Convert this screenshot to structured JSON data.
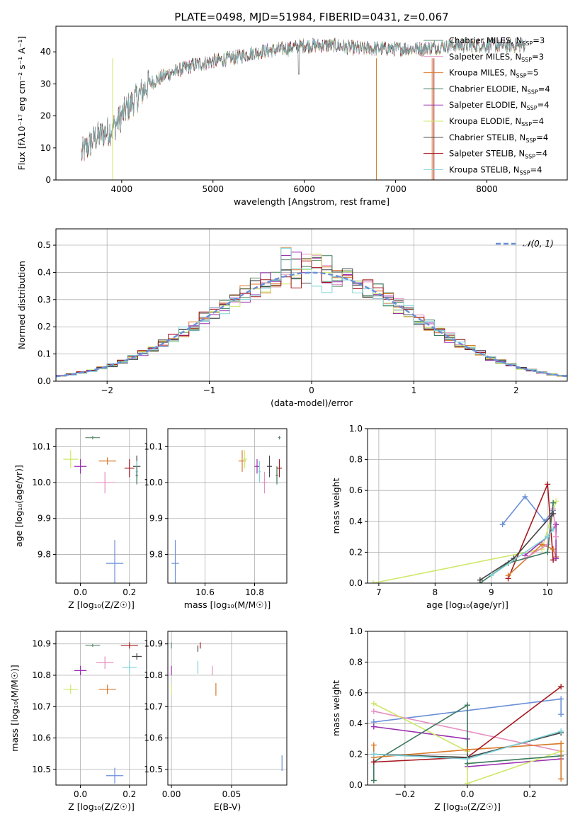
{
  "title": "PLATE=0498, MJD=51984, FIBERID=0431, z=0.067",
  "colors": {
    "cm": "#5b8b6b",
    "sm": "#e58fc0",
    "km": "#d97a2b",
    "ce": "#3d7a5e",
    "se": "#9b30b0",
    "ke": "#cde86a",
    "cs": "#444444",
    "ss": "#a5191f",
    "ks": "#7fd3d8",
    "fit": "#6a8fd8"
  },
  "chart_data": [
    {
      "id": "spectrum",
      "type": "line",
      "xlabel": "wavelength [Angstrom, rest frame]",
      "ylabel": "Flux [fλ10⁻¹⁷ erg cm⁻² s⁻¹ A⁻¹]",
      "xlim": [
        3280,
        8880
      ],
      "ylim": [
        0,
        48
      ],
      "xticks": [
        4000,
        5000,
        6000,
        7000,
        8000
      ],
      "yticks": [
        0,
        10,
        20,
        30,
        40
      ],
      "legend_position": "top-right",
      "continuum": [
        [
          3560,
          8
        ],
        [
          3700,
          13
        ],
        [
          3900,
          16
        ],
        [
          4050,
          22
        ],
        [
          4300,
          30
        ],
        [
          4500,
          33
        ],
        [
          4800,
          36
        ],
        [
          5000,
          37
        ],
        [
          5200,
          38
        ],
        [
          5500,
          40
        ],
        [
          5800,
          41
        ],
        [
          6000,
          42
        ],
        [
          6300,
          42
        ],
        [
          6600,
          41
        ],
        [
          7000,
          41
        ],
        [
          7300,
          41
        ],
        [
          7600,
          42
        ],
        [
          7900,
          42
        ],
        [
          8200,
          42
        ],
        [
          8400,
          42
        ]
      ],
      "series": [
        {
          "name": "Chabrier MILES, N",
          "sub": "SSP",
          "suffix": "=3",
          "color": "cm"
        },
        {
          "name": "Salpeter MILES, N",
          "sub": "SSP",
          "suffix": "=3",
          "color": "sm"
        },
        {
          "name": "Kroupa MILES, N",
          "sub": "SSP",
          "suffix": "=5",
          "color": "km"
        },
        {
          "name": "Chabrier ELODIE, N",
          "sub": "SSP",
          "suffix": "=4",
          "color": "ce"
        },
        {
          "name": "Salpeter ELODIE, N",
          "sub": "SSP",
          "suffix": "=4",
          "color": "se"
        },
        {
          "name": "Kroupa ELODIE, N",
          "sub": "SSP",
          "suffix": "=4",
          "color": "ke"
        },
        {
          "name": "Chabrier STELIB, N",
          "sub": "SSP",
          "suffix": "=4",
          "color": "cs"
        },
        {
          "name": "Salpeter STELIB, N",
          "sub": "SSP",
          "suffix": "=4",
          "color": "ss"
        },
        {
          "name": "Kroupa STELIB, N",
          "sub": "SSP",
          "suffix": "=4",
          "color": "ks"
        }
      ]
    },
    {
      "id": "residuals",
      "type": "line",
      "xlabel": "(data-model)/error",
      "ylabel": "Normed distribution",
      "xlim": [
        -2.5,
        2.5
      ],
      "ylim": [
        0,
        0.56
      ],
      "xticks": [
        -2,
        -1,
        0,
        1,
        2
      ],
      "yticks": [
        0,
        0.1,
        0.2,
        0.3,
        0.4,
        0.5
      ],
      "grid": true,
      "legend": "𝒩(0, 1)",
      "legend_position": "top-right",
      "peak_values": [
        0.53,
        0.51,
        0.47,
        0.42,
        0.38
      ]
    },
    {
      "id": "z_age",
      "type": "scatter",
      "xlabel": "Z [log₁₀(Z/Z☉)]",
      "ylabel": "age  [log₁₀(age/yr)]",
      "xlim": [
        -0.1,
        0.27
      ],
      "ylim": [
        9.72,
        10.15
      ],
      "xticks": [
        0.0,
        0.2
      ],
      "yticks": [
        9.8,
        9.9,
        10.0,
        10.1
      ],
      "grid": true,
      "points": [
        {
          "c": "cm",
          "x": 0.05,
          "y": 10.125,
          "ex": 0.06,
          "ey": 0.01
        },
        {
          "c": "km",
          "x": 0.11,
          "y": 10.06,
          "ex": 0.07,
          "ey": 0.02
        },
        {
          "c": "ke",
          "x": -0.04,
          "y": 10.065,
          "ex": 0.06,
          "ey": 0.05
        },
        {
          "c": "se",
          "x": 0.0,
          "y": 10.045,
          "ex": 0.05,
          "ey": 0.04
        },
        {
          "c": "sm",
          "x": 0.1,
          "y": 10.0,
          "ex": 0.08,
          "ey": 0.06
        },
        {
          "c": "ss",
          "x": 0.2,
          "y": 10.04,
          "ex": 0.04,
          "ey": 0.05
        },
        {
          "c": "cs",
          "x": 0.23,
          "y": 10.045,
          "ex": 0.03,
          "ey": 0.06
        },
        {
          "c": "ks",
          "x": 0.23,
          "y": 10.03,
          "ex": 0.01,
          "ey": 0.06
        },
        {
          "c": "ce",
          "x": 0.23,
          "y": 10.02,
          "ex": 0.01,
          "ey": 0.05
        },
        {
          "c": "fit",
          "x": 0.14,
          "y": 9.775,
          "ex": 0.07,
          "ey": 0.13
        }
      ]
    },
    {
      "id": "mass_age",
      "type": "scatter",
      "xlabel": "mass [log₁₀(M/M☉)]",
      "xlim": [
        10.45,
        10.93
      ],
      "ylim": [
        9.72,
        10.15
      ],
      "xticks": [
        10.6,
        10.8
      ],
      "yticks": [
        9.8,
        9.9,
        10.0,
        10.1
      ],
      "grid": true,
      "points": [
        {
          "c": "cm",
          "x": 10.9,
          "y": 10.125,
          "ex": 0.01,
          "ey": 0.01
        },
        {
          "c": "km",
          "x": 10.75,
          "y": 10.06,
          "ex": 0.03,
          "ey": 0.06
        },
        {
          "c": "ke",
          "x": 10.76,
          "y": 10.065,
          "ex": 0.02,
          "ey": 0.05
        },
        {
          "c": "se",
          "x": 10.81,
          "y": 10.045,
          "ex": 0.02,
          "ey": 0.04
        },
        {
          "c": "sm",
          "x": 10.84,
          "y": 10.0,
          "ex": 0.02,
          "ey": 0.06
        },
        {
          "c": "ss",
          "x": 10.9,
          "y": 10.04,
          "ex": 0.02,
          "ey": 0.05
        },
        {
          "c": "cs",
          "x": 10.86,
          "y": 10.045,
          "ex": 0.02,
          "ey": 0.06
        },
        {
          "c": "ks",
          "x": 10.82,
          "y": 10.03,
          "ex": 0.01,
          "ey": 0.06
        },
        {
          "c": "ce",
          "x": 10.89,
          "y": 10.02,
          "ex": 0.01,
          "ey": 0.05
        },
        {
          "c": "fit",
          "x": 10.48,
          "y": 9.775,
          "ex": 0.03,
          "ey": 0.13
        }
      ]
    },
    {
      "id": "age_weight",
      "type": "line",
      "xlabel": "age  [log₁₀(age/yr)]",
      "ylabel": "mass weight",
      "xlim": [
        6.8,
        10.35
      ],
      "ylim": [
        0,
        1
      ],
      "xticks": [
        7,
        8,
        9,
        10
      ],
      "yticks": [
        0.0,
        0.2,
        0.4,
        0.6,
        0.8,
        1.0
      ],
      "grid": true,
      "series": [
        {
          "c": "ke",
          "pts": [
            [
              6.9,
              0.0
            ],
            [
              9.9,
              0.22
            ],
            [
              10.15,
              0.53
            ]
          ]
        },
        {
          "c": "fit",
          "pts": [
            [
              9.2,
              0.38
            ],
            [
              9.6,
              0.56
            ],
            [
              9.95,
              0.4
            ],
            [
              10.1,
              0.47
            ]
          ]
        },
        {
          "c": "ss",
          "pts": [
            [
              9.3,
              0.03
            ],
            [
              10.0,
              0.64
            ],
            [
              10.1,
              0.15
            ]
          ]
        },
        {
          "c": "km",
          "pts": [
            [
              9.3,
              0.05
            ],
            [
              9.9,
              0.25
            ],
            [
              10.1,
              0.22
            ],
            [
              10.15,
              0.17
            ]
          ]
        },
        {
          "c": "se",
          "pts": [
            [
              9.6,
              0.18
            ],
            [
              10.0,
              0.3
            ],
            [
              10.15,
              0.38
            ],
            [
              10.15,
              0.16
            ]
          ]
        },
        {
          "c": "sm",
          "pts": [
            [
              9.6,
              0.16
            ],
            [
              10.0,
              0.25
            ],
            [
              10.1,
              0.48
            ],
            [
              10.15,
              0.3
            ]
          ]
        },
        {
          "c": "ce",
          "pts": [
            [
              8.8,
              0.0
            ],
            [
              9.3,
              0.13
            ],
            [
              10.0,
              0.2
            ],
            [
              10.1,
              0.52
            ]
          ]
        },
        {
          "c": "cs",
          "pts": [
            [
              8.8,
              0.02
            ],
            [
              9.4,
              0.16
            ],
            [
              10.1,
              0.45
            ]
          ]
        },
        {
          "c": "ks",
          "pts": [
            [
              9.0,
              0.05
            ],
            [
              10.0,
              0.3
            ],
            [
              10.1,
              0.35
            ]
          ]
        }
      ]
    },
    {
      "id": "z_mass",
      "type": "scatter",
      "xlabel": "Z [log₁₀(Z/Z☉)]",
      "ylabel": "mass [log₁₀(M/M☉)]",
      "xlim": [
        -0.1,
        0.27
      ],
      "ylim": [
        10.45,
        10.94
      ],
      "xticks": [
        0.0,
        0.2
      ],
      "yticks": [
        10.5,
        10.6,
        10.7,
        10.8,
        10.9
      ],
      "grid": true,
      "points": [
        {
          "c": "cm",
          "x": 0.05,
          "y": 10.895,
          "ex": 0.06,
          "ey": 0.01
        },
        {
          "c": "ss",
          "x": 0.2,
          "y": 10.895,
          "ex": 0.07,
          "ey": 0.02
        },
        {
          "c": "cs",
          "x": 0.23,
          "y": 10.86,
          "ex": 0.04,
          "ey": 0.02
        },
        {
          "c": "sm",
          "x": 0.1,
          "y": 10.84,
          "ex": 0.07,
          "ey": 0.04
        },
        {
          "c": "ks",
          "x": 0.2,
          "y": 10.825,
          "ex": 0.06,
          "ey": 0.04
        },
        {
          "c": "se",
          "x": 0.0,
          "y": 10.815,
          "ex": 0.05,
          "ey": 0.03
        },
        {
          "c": "km",
          "x": 0.11,
          "y": 10.755,
          "ex": 0.07,
          "ey": 0.03
        },
        {
          "c": "ke",
          "x": -0.04,
          "y": 10.755,
          "ex": 0.06,
          "ey": 0.03
        },
        {
          "c": "fit",
          "x": 0.14,
          "y": 10.48,
          "ex": 0.07,
          "ey": 0.05
        }
      ]
    },
    {
      "id": "ebv_mass",
      "type": "scatter",
      "xlabel": "E(B-V)",
      "xlim": [
        -0.003,
        0.096
      ],
      "ylim": [
        10.45,
        10.94
      ],
      "xticks": [
        0.0,
        0.05
      ],
      "yticks": [
        10.5,
        10.6,
        10.7,
        10.8,
        10.9
      ],
      "grid": true,
      "points": [
        {
          "c": "cm",
          "x": 0.0,
          "y": 10.895,
          "ex": 0.0,
          "ey": 0.02
        },
        {
          "c": "ss",
          "x": 0.024,
          "y": 10.895,
          "ex": 0.0,
          "ey": 0.02
        },
        {
          "c": "cs",
          "x": 0.022,
          "y": 10.885,
          "ex": 0.0,
          "ey": 0.02
        },
        {
          "c": "se",
          "x": 0.0,
          "y": 10.815,
          "ex": 0.0,
          "ey": 0.03
        },
        {
          "c": "ks",
          "x": 0.022,
          "y": 10.825,
          "ex": 0.0,
          "ey": 0.04
        },
        {
          "c": "sm",
          "x": 0.034,
          "y": 10.815,
          "ex": 0.0,
          "ey": 0.03
        },
        {
          "c": "km",
          "x": 0.037,
          "y": 10.755,
          "ex": 0.0,
          "ey": 0.04
        },
        {
          "c": "ke",
          "x": 0.0,
          "y": 10.755,
          "ex": 0.0,
          "ey": 0.03
        },
        {
          "c": "fit",
          "x": 0.092,
          "y": 10.52,
          "ex": 0.0,
          "ey": 0.05
        }
      ]
    },
    {
      "id": "z_weight",
      "type": "line",
      "xlabel": "Z [log₁₀(Z/Z☉)]",
      "ylabel": "mass weight",
      "xlim": [
        -0.32,
        0.32
      ],
      "ylim": [
        0,
        1
      ],
      "xticks": [
        -0.2,
        0.0,
        0.2
      ],
      "yticks": [
        0.0,
        0.2,
        0.4,
        0.6,
        0.8,
        1.0
      ],
      "grid": true,
      "series": [
        {
          "c": "fit",
          "pts": [
            [
              -0.3,
              0.41
            ],
            [
              0.3,
              0.56
            ],
            [
              0.3,
              0.46
            ]
          ]
        },
        {
          "c": "sm",
          "pts": [
            [
              -0.3,
              0.48
            ],
            [
              0.3,
              0.22
            ]
          ]
        },
        {
          "c": "se",
          "pts": [
            [
              -0.3,
              0.38
            ],
            [
              0.0,
              0.3
            ],
            [
              0.0,
              0.12
            ],
            [
              0.3,
              0.17
            ]
          ]
        },
        {
          "c": "ke",
          "pts": [
            [
              -0.3,
              0.53
            ],
            [
              0.0,
              0.22
            ],
            [
              0.0,
              0.01
            ],
            [
              0.3,
              0.22
            ]
          ]
        },
        {
          "c": "ce",
          "pts": [
            [
              -0.3,
              0.03
            ],
            [
              -0.3,
              0.15
            ],
            [
              0.0,
              0.52
            ],
            [
              0.0,
              0.14
            ],
            [
              0.3,
              0.19
            ]
          ]
        },
        {
          "c": "km",
          "pts": [
            [
              -0.3,
              0.26
            ],
            [
              -0.3,
              0.18
            ],
            [
              0.0,
              0.23
            ],
            [
              0.3,
              0.27
            ],
            [
              0.3,
              0.04
            ]
          ]
        },
        {
          "c": "ss",
          "pts": [
            [
              -0.3,
              0.15
            ],
            [
              0.0,
              0.18
            ],
            [
              0.3,
              0.64
            ]
          ]
        },
        {
          "c": "cs",
          "pts": [
            [
              -0.3,
              0.2
            ],
            [
              0.0,
              0.18
            ],
            [
              0.3,
              0.34
            ]
          ]
        },
        {
          "c": "ks",
          "pts": [
            [
              -0.3,
              0.2
            ],
            [
              0.0,
              0.17
            ],
            [
              0.3,
              0.35
            ]
          ]
        }
      ]
    }
  ]
}
